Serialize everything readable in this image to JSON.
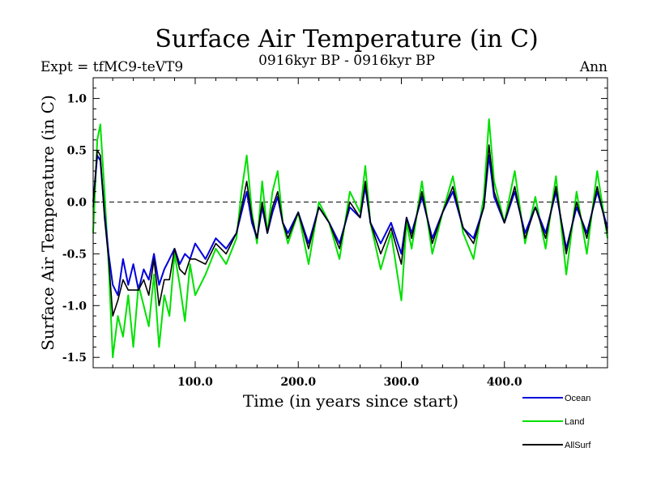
{
  "chart_data": {
    "type": "line",
    "title": "Surface Air Temperature (in C)",
    "subtitle": "0916kyr BP - 0916kyr BP",
    "expt_label": "Expt = tfMC9-teVT9",
    "period_label": "Ann",
    "xlabel": "Time (in years since start)",
    "ylabel": "Surface Air Temperature (in C)",
    "xlim": [
      1,
      500
    ],
    "ylim": [
      -1.6,
      1.2
    ],
    "x_ticks": [
      100,
      200,
      300,
      400
    ],
    "x_tick_labels": [
      "100.0",
      "200.0",
      "300.0",
      "400.0"
    ],
    "y_ticks": [
      -1.5,
      -1.0,
      -0.5,
      0.0,
      0.5,
      1.0
    ],
    "y_tick_labels": [
      "-1.5",
      "-1.0",
      "-0.5",
      "0.0",
      "0.5",
      "1.0"
    ],
    "reference_line": 0.0,
    "legend_position": "bottom-right",
    "series": [
      {
        "name": "Land",
        "color": "#00e000",
        "x": [
          1,
          5,
          8,
          12,
          16,
          20,
          25,
          30,
          35,
          40,
          45,
          50,
          55,
          60,
          65,
          70,
          75,
          80,
          85,
          90,
          95,
          100,
          110,
          120,
          130,
          140,
          145,
          150,
          155,
          160,
          165,
          170,
          175,
          180,
          185,
          190,
          200,
          210,
          220,
          230,
          240,
          250,
          260,
          265,
          270,
          280,
          290,
          300,
          305,
          310,
          320,
          330,
          340,
          350,
          360,
          370,
          380,
          385,
          390,
          400,
          410,
          420,
          430,
          440,
          450,
          460,
          470,
          480,
          490,
          500
        ],
        "values": [
          -0.3,
          0.6,
          0.75,
          0.1,
          -0.6,
          -1.5,
          -1.1,
          -1.3,
          -0.9,
          -1.4,
          -0.8,
          -1.0,
          -1.2,
          -0.7,
          -1.4,
          -0.9,
          -1.1,
          -0.5,
          -0.8,
          -1.15,
          -0.6,
          -0.9,
          -0.7,
          -0.45,
          -0.6,
          -0.35,
          0.1,
          0.45,
          -0.1,
          -0.4,
          0.2,
          -0.3,
          0.1,
          0.3,
          -0.2,
          -0.4,
          -0.1,
          -0.6,
          0.0,
          -0.2,
          -0.55,
          0.1,
          -0.1,
          0.35,
          -0.2,
          -0.65,
          -0.3,
          -0.95,
          -0.2,
          -0.45,
          0.2,
          -0.5,
          -0.1,
          0.25,
          -0.3,
          -0.55,
          0.05,
          0.8,
          0.2,
          -0.2,
          0.3,
          -0.4,
          0.05,
          -0.45,
          0.25,
          -0.7,
          0.1,
          -0.5,
          0.3,
          -0.35
        ]
      },
      {
        "name": "Ocean",
        "color": "#0000dd",
        "x": [
          1,
          5,
          8,
          12,
          16,
          20,
          25,
          30,
          35,
          40,
          45,
          50,
          55,
          60,
          65,
          70,
          75,
          80,
          85,
          90,
          95,
          100,
          110,
          120,
          130,
          140,
          145,
          150,
          155,
          160,
          165,
          170,
          175,
          180,
          185,
          190,
          200,
          210,
          220,
          230,
          240,
          250,
          260,
          265,
          270,
          280,
          290,
          300,
          305,
          310,
          320,
          330,
          340,
          350,
          360,
          370,
          380,
          385,
          390,
          400,
          410,
          420,
          430,
          440,
          450,
          460,
          470,
          480,
          490,
          500
        ],
        "values": [
          0.0,
          0.45,
          0.4,
          -0.1,
          -0.5,
          -0.8,
          -0.9,
          -0.55,
          -0.8,
          -0.6,
          -0.85,
          -0.65,
          -0.75,
          -0.5,
          -0.8,
          -0.65,
          -0.55,
          -0.45,
          -0.6,
          -0.5,
          -0.55,
          -0.4,
          -0.55,
          -0.35,
          -0.45,
          -0.3,
          -0.1,
          0.1,
          -0.2,
          -0.35,
          -0.05,
          -0.3,
          -0.1,
          0.05,
          -0.2,
          -0.3,
          -0.1,
          -0.4,
          -0.05,
          -0.2,
          -0.4,
          -0.05,
          -0.15,
          0.15,
          -0.2,
          -0.4,
          -0.2,
          -0.5,
          -0.15,
          -0.3,
          0.05,
          -0.35,
          -0.1,
          0.1,
          -0.25,
          -0.35,
          -0.05,
          0.45,
          0.05,
          -0.2,
          0.1,
          -0.3,
          -0.05,
          -0.3,
          0.1,
          -0.45,
          -0.05,
          -0.3,
          0.1,
          -0.25
        ]
      },
      {
        "name": "AllSurf",
        "color": "#000000",
        "x": [
          1,
          5,
          8,
          12,
          16,
          20,
          25,
          30,
          35,
          40,
          45,
          50,
          55,
          60,
          65,
          70,
          75,
          80,
          85,
          90,
          95,
          100,
          110,
          120,
          130,
          140,
          145,
          150,
          155,
          160,
          165,
          170,
          175,
          180,
          185,
          190,
          200,
          210,
          220,
          230,
          240,
          250,
          260,
          265,
          270,
          280,
          290,
          300,
          305,
          310,
          320,
          330,
          340,
          350,
          360,
          370,
          380,
          385,
          390,
          400,
          410,
          420,
          430,
          440,
          450,
          460,
          470,
          480,
          490,
          500
        ],
        "values": [
          -0.05,
          0.5,
          0.45,
          -0.15,
          -0.55,
          -1.1,
          -0.95,
          -0.75,
          -0.85,
          -0.85,
          -0.85,
          -0.75,
          -0.9,
          -0.55,
          -1.0,
          -0.75,
          -0.75,
          -0.45,
          -0.65,
          -0.7,
          -0.55,
          -0.55,
          -0.6,
          -0.4,
          -0.5,
          -0.3,
          -0.05,
          0.2,
          -0.15,
          -0.35,
          0.0,
          -0.3,
          -0.05,
          0.1,
          -0.2,
          -0.35,
          -0.1,
          -0.45,
          -0.05,
          -0.2,
          -0.45,
          0.0,
          -0.15,
          0.2,
          -0.2,
          -0.5,
          -0.25,
          -0.6,
          -0.15,
          -0.35,
          0.1,
          -0.4,
          -0.1,
          0.15,
          -0.25,
          -0.4,
          -0.05,
          0.55,
          0.1,
          -0.2,
          0.15,
          -0.35,
          -0.05,
          -0.35,
          0.15,
          -0.5,
          0.0,
          -0.35,
          0.15,
          -0.3
        ]
      }
    ]
  }
}
